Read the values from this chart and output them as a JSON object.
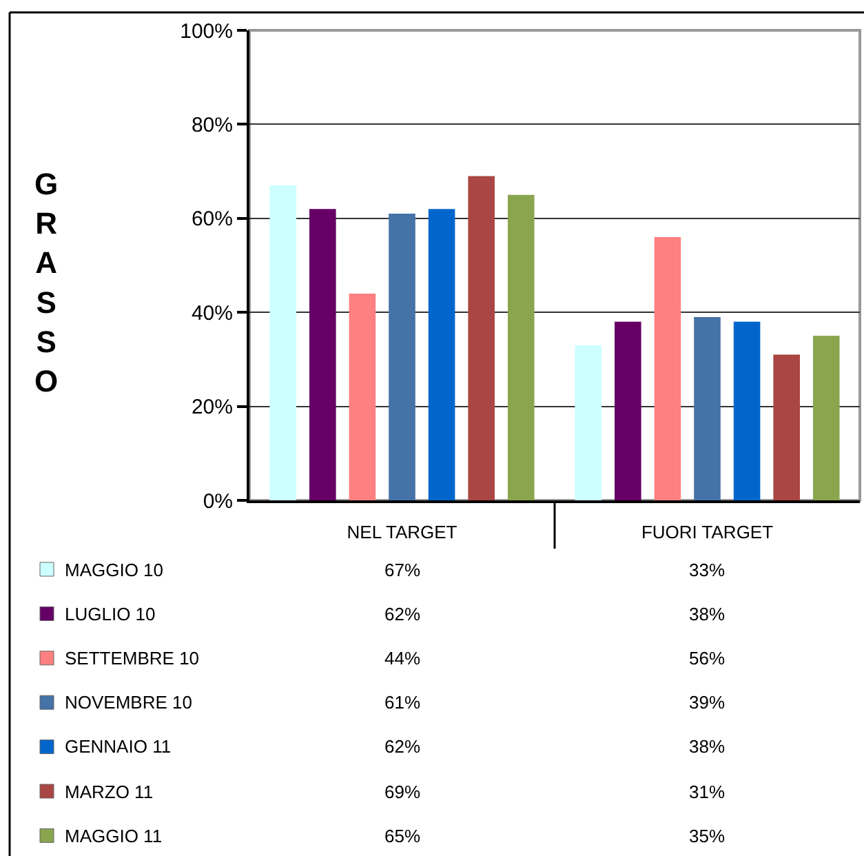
{
  "chart_data": {
    "type": "bar",
    "ylabel": "GRASSO",
    "categories": [
      "NEL TARGET",
      "FUORI TARGET"
    ],
    "ylim": [
      0,
      100
    ],
    "yticks": [
      {
        "value": 0,
        "label": "0%"
      },
      {
        "value": 20,
        "label": "20%"
      },
      {
        "value": 40,
        "label": "40%"
      },
      {
        "value": 60,
        "label": "60%"
      },
      {
        "value": 80,
        "label": "80%"
      },
      {
        "value": 100,
        "label": "100%"
      }
    ],
    "grid": "y",
    "legend": "bottom left",
    "series": [
      {
        "name": "MAGGIO 10",
        "color": "#ccffff",
        "values": [
          67,
          33
        ],
        "value_labels": [
          "67%",
          "33%"
        ]
      },
      {
        "name": "LUGLIO 10",
        "color": "#660066",
        "values": [
          62,
          38
        ],
        "value_labels": [
          "62%",
          "38%"
        ]
      },
      {
        "name": "SETTEMBRE 10",
        "color": "#ff8080",
        "values": [
          44,
          56
        ],
        "value_labels": [
          "44%",
          "56%"
        ]
      },
      {
        "name": "NOVEMBRE 10",
        "color": "#4572a7",
        "values": [
          61,
          39
        ],
        "value_labels": [
          "61%",
          "39%"
        ]
      },
      {
        "name": "GENNAIO 11",
        "color": "#0066cc",
        "values": [
          62,
          38
        ],
        "value_labels": [
          "62%",
          "38%"
        ]
      },
      {
        "name": "MARZO 11",
        "color": "#aa4643",
        "values": [
          69,
          31
        ],
        "value_labels": [
          "69%",
          "31%"
        ]
      },
      {
        "name": "MAGGIO 11",
        "color": "#89a54e",
        "values": [
          65,
          35
        ],
        "value_labels": [
          "65%",
          "35%"
        ]
      }
    ]
  }
}
